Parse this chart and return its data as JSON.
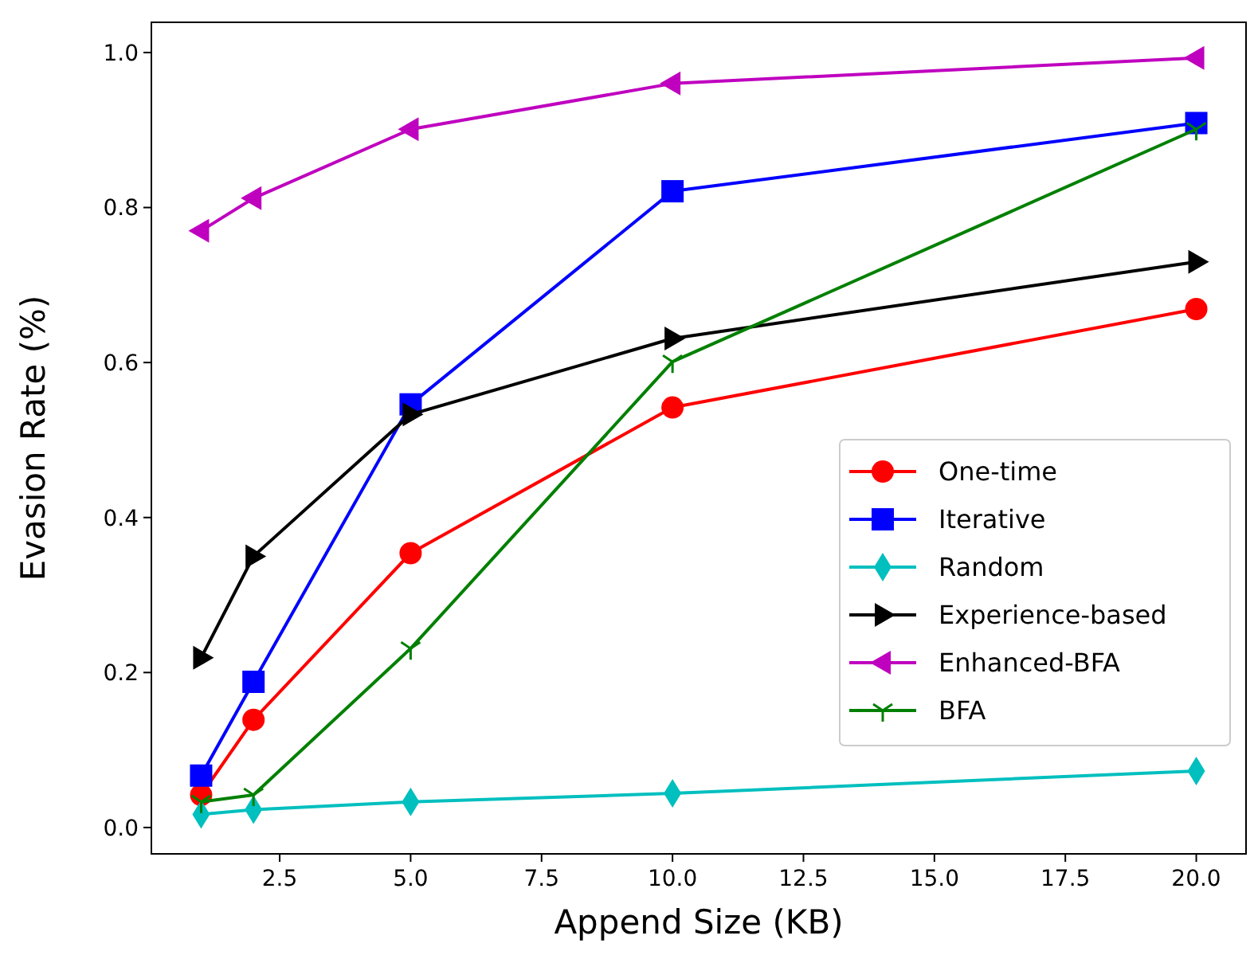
{
  "chart_data": {
    "type": "line",
    "xlabel": "Append Size (KB)",
    "ylabel": "Evasion Rate (%)",
    "xlim": [
      0.05,
      20.95
    ],
    "xticks": [
      {
        "value": 2.5,
        "label": "2.5"
      },
      {
        "value": 5,
        "label": "5.0"
      },
      {
        "value": 7.5,
        "label": "7.5"
      },
      {
        "value": 10,
        "label": "10.0"
      },
      {
        "value": 12.5,
        "label": "12.5"
      },
      {
        "value": 15,
        "label": "15.0"
      },
      {
        "value": 17.5,
        "label": "17.5"
      },
      {
        "value": 20,
        "label": "20.0"
      }
    ],
    "ylim": [
      -0.034,
      1.039
    ],
    "yticks": [
      {
        "value": 0,
        "label": "0.0"
      },
      {
        "value": 0.2,
        "label": "0.2"
      },
      {
        "value": 0.4,
        "label": "0.4"
      },
      {
        "value": 0.6,
        "label": "0.6"
      },
      {
        "value": 0.8,
        "label": "0.8"
      },
      {
        "value": 1,
        "label": "1.0"
      }
    ],
    "x": [
      1,
      2,
      5,
      10,
      20
    ],
    "legend": "lower right",
    "grid": false,
    "line_style": "solid",
    "series": [
      {
        "name": "One-time",
        "color": "#ff0000",
        "marker": "circle",
        "values": [
          0.042,
          0.139,
          0.354,
          0.542,
          0.669
        ]
      },
      {
        "name": "Iterative",
        "color": "#0000ff",
        "marker": "square",
        "values": [
          0.067,
          0.188,
          0.546,
          0.821,
          0.909
        ]
      },
      {
        "name": "Random",
        "color": "#00bfbf",
        "marker": "diamond",
        "values": [
          0.017,
          0.023,
          0.033,
          0.044,
          0.073
        ]
      },
      {
        "name": "Experience-based",
        "color": "#000000",
        "marker": "triangle-right",
        "values": [
          0.219,
          0.35,
          0.533,
          0.631,
          0.73
        ]
      },
      {
        "name": "Enhanced-BFA",
        "color": "#bf00bf",
        "marker": "triangle-left",
        "values": [
          0.77,
          0.812,
          0.901,
          0.96,
          0.993
        ]
      },
      {
        "name": "BFA",
        "color": "#008000",
        "marker": "cross",
        "values": [
          0.033,
          0.042,
          0.231,
          0.601,
          0.901
        ]
      }
    ]
  }
}
